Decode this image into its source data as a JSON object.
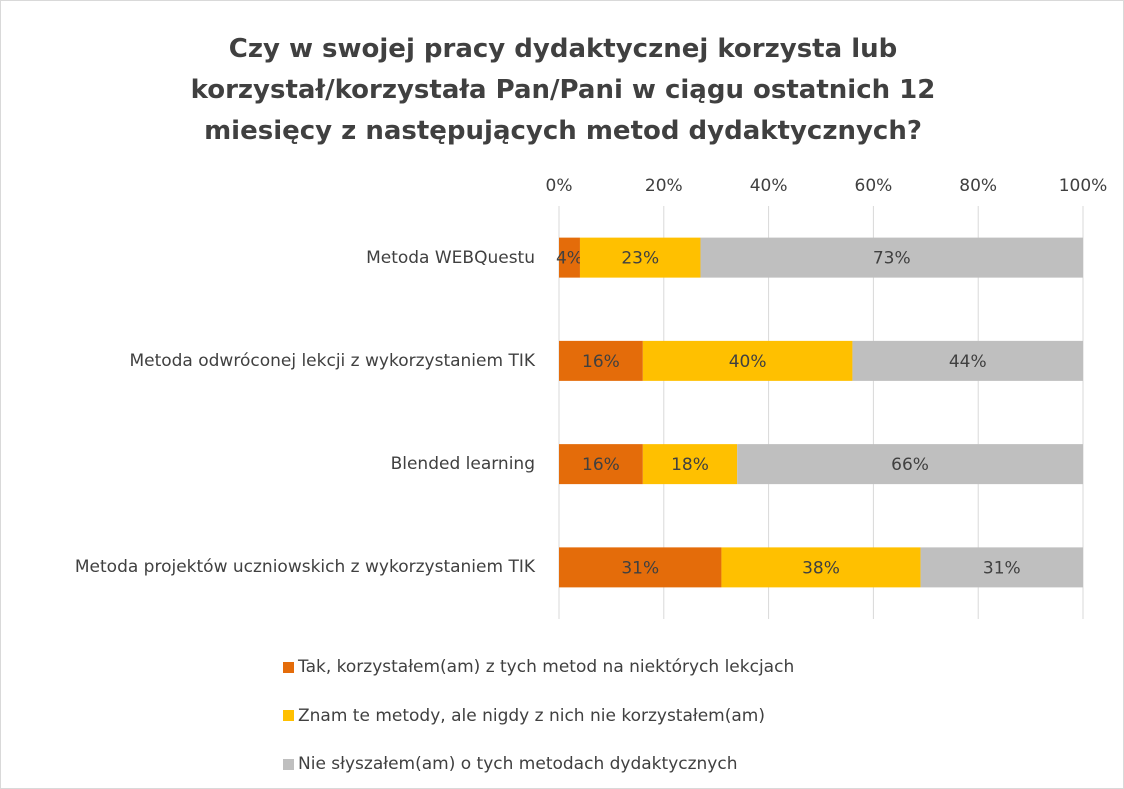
{
  "chart_data": {
    "type": "bar",
    "orientation": "horizontal",
    "stacked": true,
    "title": "Czy w swojej pracy dydaktycznej korzysta lub korzystał/korzystała Pan/Pani w ciągu ostatnich 12 miesięcy z następujących metod dydaktycznych?",
    "categories": [
      "Metoda WEBQuestu",
      "Metoda odwróconej lekcji z wykorzystaniem TIK",
      "Blended learning",
      "Metoda projektów uczniowskich z wykorzystaniem TIK"
    ],
    "series": [
      {
        "name": "Tak, korzystałem(am) z tych metod na niektórych lekcjach",
        "color": "#e46c0a",
        "values": [
          4,
          16,
          16,
          31
        ],
        "value_labels": [
          "4%",
          "16%",
          "16%",
          "31%"
        ]
      },
      {
        "name": "Znam te metody, ale nigdy z nich nie korzystałem(am)",
        "color": "#ffc000",
        "values": [
          23,
          40,
          18,
          38
        ],
        "value_labels": [
          "23%",
          "40%",
          "18%",
          "38%"
        ]
      },
      {
        "name": "Nie słyszałem(am) o tych metodach dydaktycznych",
        "color": "#bfbfbf",
        "values": [
          73,
          44,
          66,
          31
        ],
        "value_labels": [
          "73%",
          "44%",
          "66%",
          "31%"
        ]
      }
    ],
    "xlim": [
      0,
      100
    ],
    "xticks": [
      {
        "value": 0,
        "label": "0%"
      },
      {
        "value": 20,
        "label": "20%"
      },
      {
        "value": 40,
        "label": "40%"
      },
      {
        "value": 60,
        "label": "60%"
      },
      {
        "value": 80,
        "label": "80%"
      },
      {
        "value": 100,
        "label": "100%"
      }
    ],
    "grid": true,
    "legend": "bottom"
  }
}
